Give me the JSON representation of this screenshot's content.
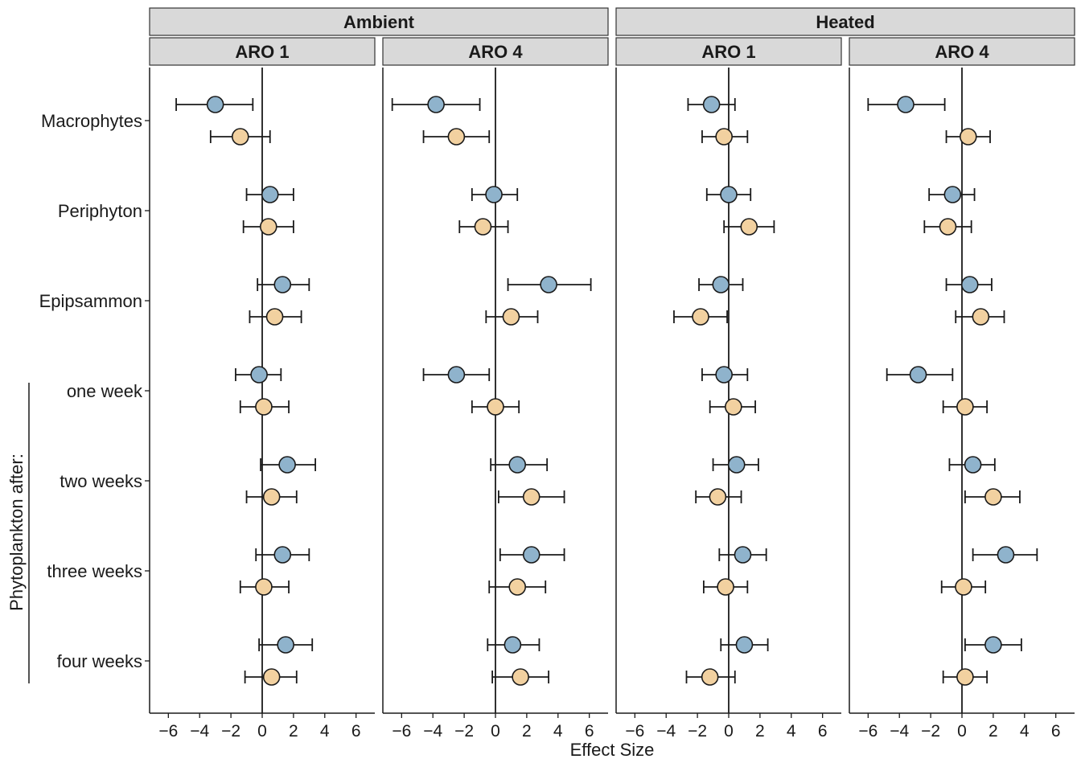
{
  "chart_data": {
    "type": "scatter",
    "subtype": "forest-plot-with-error-bars",
    "xlabel": "Effect Size",
    "xlim": [
      -7.2,
      7.2
    ],
    "x_ticks": [
      -6,
      -4,
      -2,
      0,
      2,
      4,
      6
    ],
    "x_tick_labels": [
      "−6",
      "−4",
      "−2",
      "0",
      "2",
      "4",
      "6"
    ],
    "group_strips": [
      {
        "label": "Ambient",
        "panels": [
          0,
          1
        ]
      },
      {
        "label": "Heated",
        "panels": [
          2,
          3
        ]
      }
    ],
    "panel_strips": [
      "ARO 1",
      "ARO 4",
      "ARO 1",
      "ARO 4"
    ],
    "categories": [
      "Macrophytes",
      "Periphyton",
      "Epipsammon",
      "one week",
      "two weeks",
      "three weeks",
      "four weeks"
    ],
    "bracket_label": "Phytoplankton after:",
    "series_colors": {
      "blue": "#8fb3cc",
      "orange": "#f2d1a0"
    },
    "point_stroke": "#1a1a1a",
    "vline_at": 0,
    "grid": false,
    "panels": [
      {
        "blue": [
          [
            -3.0,
            -5.5,
            -0.6
          ],
          [
            0.5,
            -1.0,
            2.0
          ],
          [
            1.3,
            -0.3,
            3.0
          ],
          [
            -0.2,
            -1.7,
            1.2
          ],
          [
            1.6,
            -0.1,
            3.4
          ],
          [
            1.3,
            -0.4,
            3.0
          ],
          [
            1.5,
            -0.2,
            3.2
          ]
        ],
        "orange": [
          [
            -1.4,
            -3.3,
            0.5
          ],
          [
            0.4,
            -1.2,
            2.0
          ],
          [
            0.8,
            -0.8,
            2.5
          ],
          [
            0.1,
            -1.4,
            1.7
          ],
          [
            0.6,
            -1.0,
            2.2
          ],
          [
            0.1,
            -1.4,
            1.7
          ],
          [
            0.6,
            -1.1,
            2.2
          ]
        ]
      },
      {
        "blue": [
          [
            -3.8,
            -6.6,
            -1.0
          ],
          [
            -0.1,
            -1.5,
            1.4
          ],
          [
            3.4,
            0.8,
            6.1
          ],
          [
            -2.5,
            -4.6,
            -0.4
          ],
          [
            1.4,
            -0.3,
            3.3
          ],
          [
            2.3,
            0.3,
            4.4
          ],
          [
            1.1,
            -0.5,
            2.8
          ]
        ],
        "orange": [
          [
            -2.5,
            -4.6,
            -0.4
          ],
          [
            -0.8,
            -2.3,
            0.8
          ],
          [
            1.0,
            -0.6,
            2.7
          ],
          [
            0.0,
            -1.5,
            1.5
          ],
          [
            2.3,
            0.2,
            4.4
          ],
          [
            1.4,
            -0.4,
            3.2
          ],
          [
            1.6,
            -0.2,
            3.4
          ]
        ]
      },
      {
        "blue": [
          [
            -1.1,
            -2.6,
            0.4
          ],
          [
            0.0,
            -1.4,
            1.4
          ],
          [
            -0.5,
            -1.9,
            0.9
          ],
          [
            -0.3,
            -1.7,
            1.2
          ],
          [
            0.5,
            -1.0,
            1.9
          ],
          [
            0.9,
            -0.6,
            2.4
          ],
          [
            1.0,
            -0.5,
            2.5
          ]
        ],
        "orange": [
          [
            -0.3,
            -1.7,
            1.2
          ],
          [
            1.3,
            -0.3,
            2.9
          ],
          [
            -1.8,
            -3.5,
            -0.1
          ],
          [
            0.3,
            -1.2,
            1.7
          ],
          [
            -0.7,
            -2.1,
            0.8
          ],
          [
            -0.2,
            -1.6,
            1.2
          ],
          [
            -1.2,
            -2.7,
            0.4
          ]
        ]
      },
      {
        "blue": [
          [
            -3.6,
            -6.0,
            -1.1
          ],
          [
            -0.6,
            -2.1,
            0.8
          ],
          [
            0.5,
            -1.0,
            1.9
          ],
          [
            -2.8,
            -4.8,
            -0.6
          ],
          [
            0.7,
            -0.8,
            2.1
          ],
          [
            2.8,
            0.7,
            4.8
          ],
          [
            2.0,
            0.2,
            3.8
          ]
        ],
        "orange": [
          [
            0.4,
            -1.0,
            1.8
          ],
          [
            -0.9,
            -2.4,
            0.6
          ],
          [
            1.2,
            -0.4,
            2.7
          ],
          [
            0.2,
            -1.2,
            1.6
          ],
          [
            2.0,
            0.2,
            3.7
          ],
          [
            0.1,
            -1.3,
            1.5
          ],
          [
            0.2,
            -1.2,
            1.6
          ]
        ]
      }
    ]
  }
}
